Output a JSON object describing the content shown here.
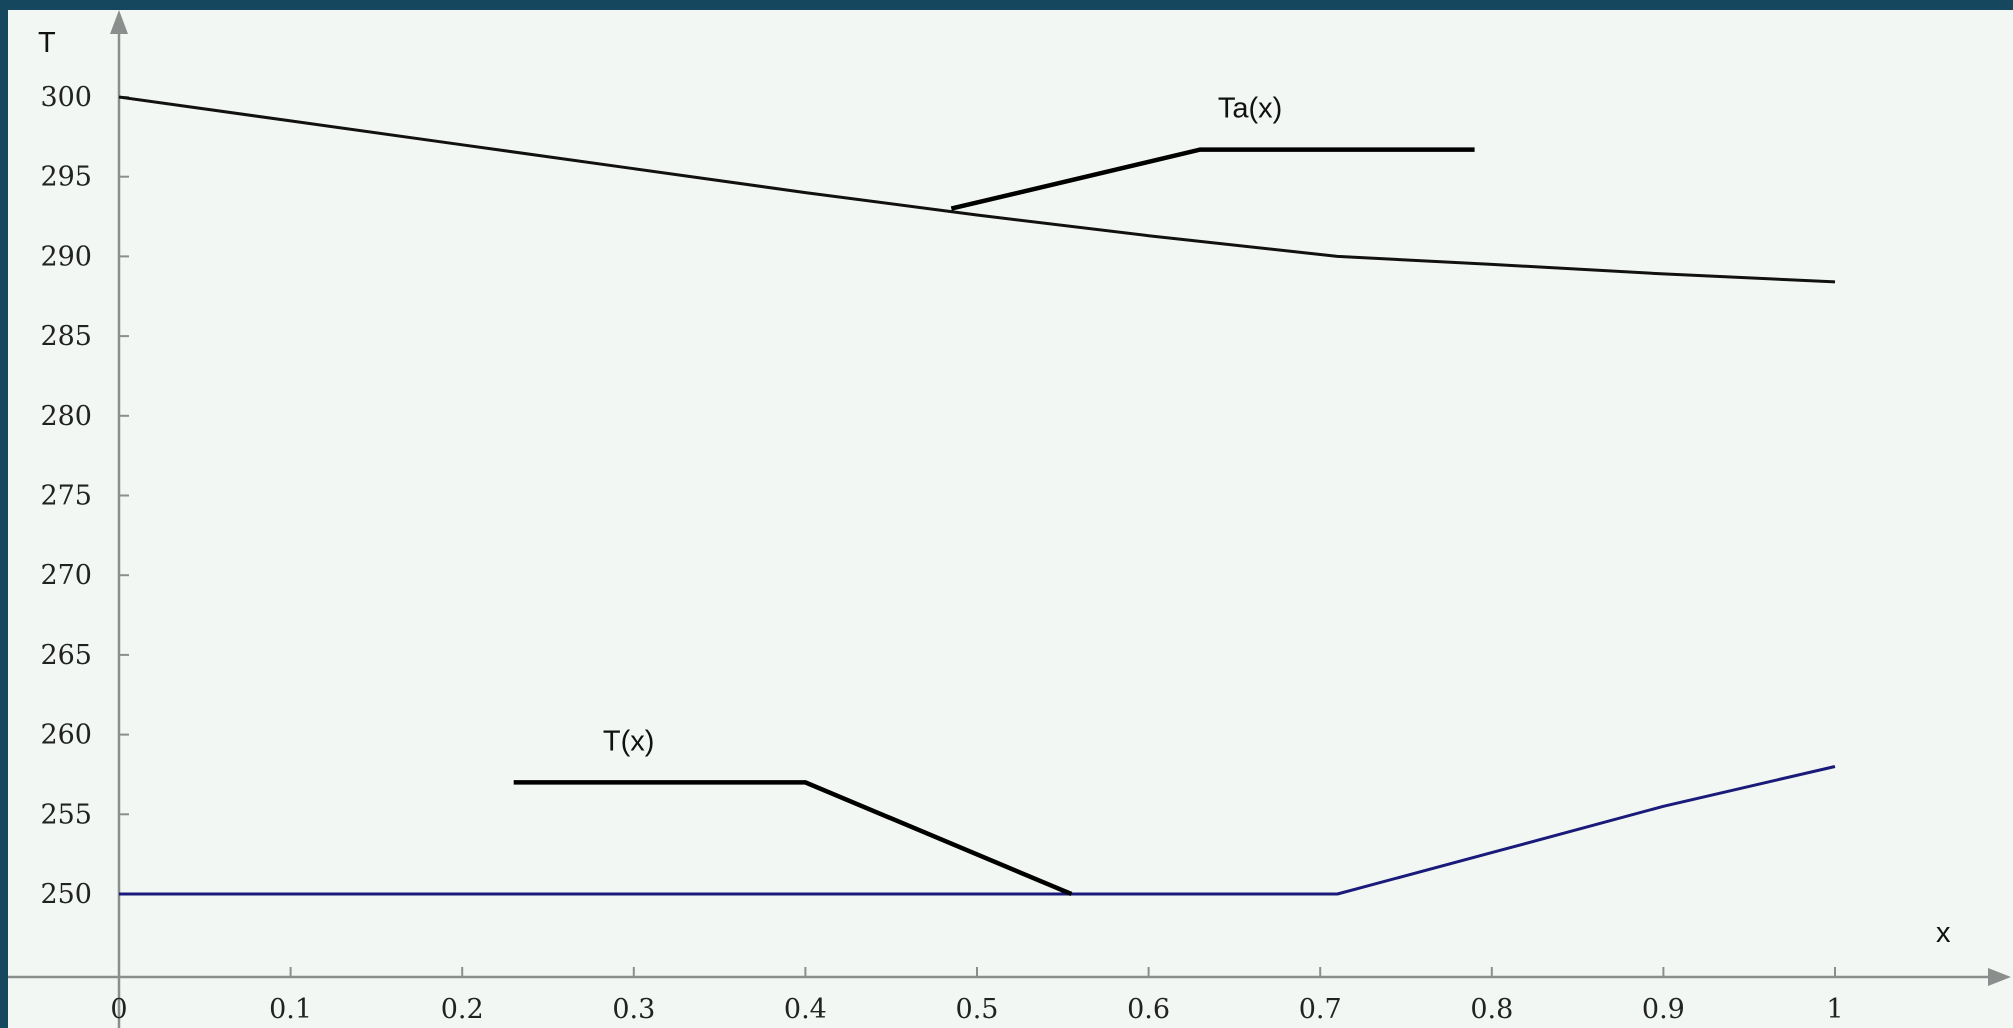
{
  "chart_data": {
    "type": "line",
    "title": "",
    "xlabel": "x",
    "ylabel": "T",
    "xlim": [
      0,
      1
    ],
    "ylim": [
      250,
      300
    ],
    "xticks": [
      0,
      0.1,
      0.2,
      0.3,
      0.4,
      0.5,
      0.6,
      0.7,
      0.8,
      0.9,
      1
    ],
    "xtick_labels": [
      "0",
      "0.1",
      "0.2",
      "0.3",
      "0.4",
      "0.5",
      "0.6",
      "0.7",
      "0.8",
      "0.9",
      "1"
    ],
    "yticks": [
      250,
      255,
      260,
      265,
      270,
      275,
      280,
      285,
      290,
      295,
      300
    ],
    "ytick_labels": [
      "250",
      "255",
      "260",
      "265",
      "270",
      "275",
      "280",
      "285",
      "290",
      "295",
      "300"
    ],
    "grid": false,
    "series": [
      {
        "name": "Ta(x)",
        "color": "#111111",
        "x": [
          0,
          0.1,
          0.2,
          0.3,
          0.4,
          0.5,
          0.6,
          0.71,
          0.8,
          0.9,
          1
        ],
        "y": [
          300,
          298.5,
          297.0,
          295.5,
          294.0,
          292.6,
          291.3,
          290.0,
          289.5,
          288.9,
          288.4
        ]
      },
      {
        "name": "T(x)",
        "color": "#1a1a7a",
        "x": [
          0,
          0.71,
          0.8,
          0.9,
          1
        ],
        "y": [
          250,
          250,
          252.6,
          255.5,
          258.0
        ]
      }
    ],
    "annotations": [
      {
        "text": "Ta(x)",
        "target_x": 0.485,
        "target_y": 293.0,
        "elbow_x": 0.63,
        "elbow_y": 296.7,
        "end_x": 0.79,
        "end_y": 296.7
      },
      {
        "text": "T(x)",
        "target_x": 0.555,
        "target_y": 250.0,
        "elbow_x": 0.4,
        "elbow_y": 257.0,
        "end_x": 0.23,
        "end_y": 257.0
      }
    ]
  }
}
